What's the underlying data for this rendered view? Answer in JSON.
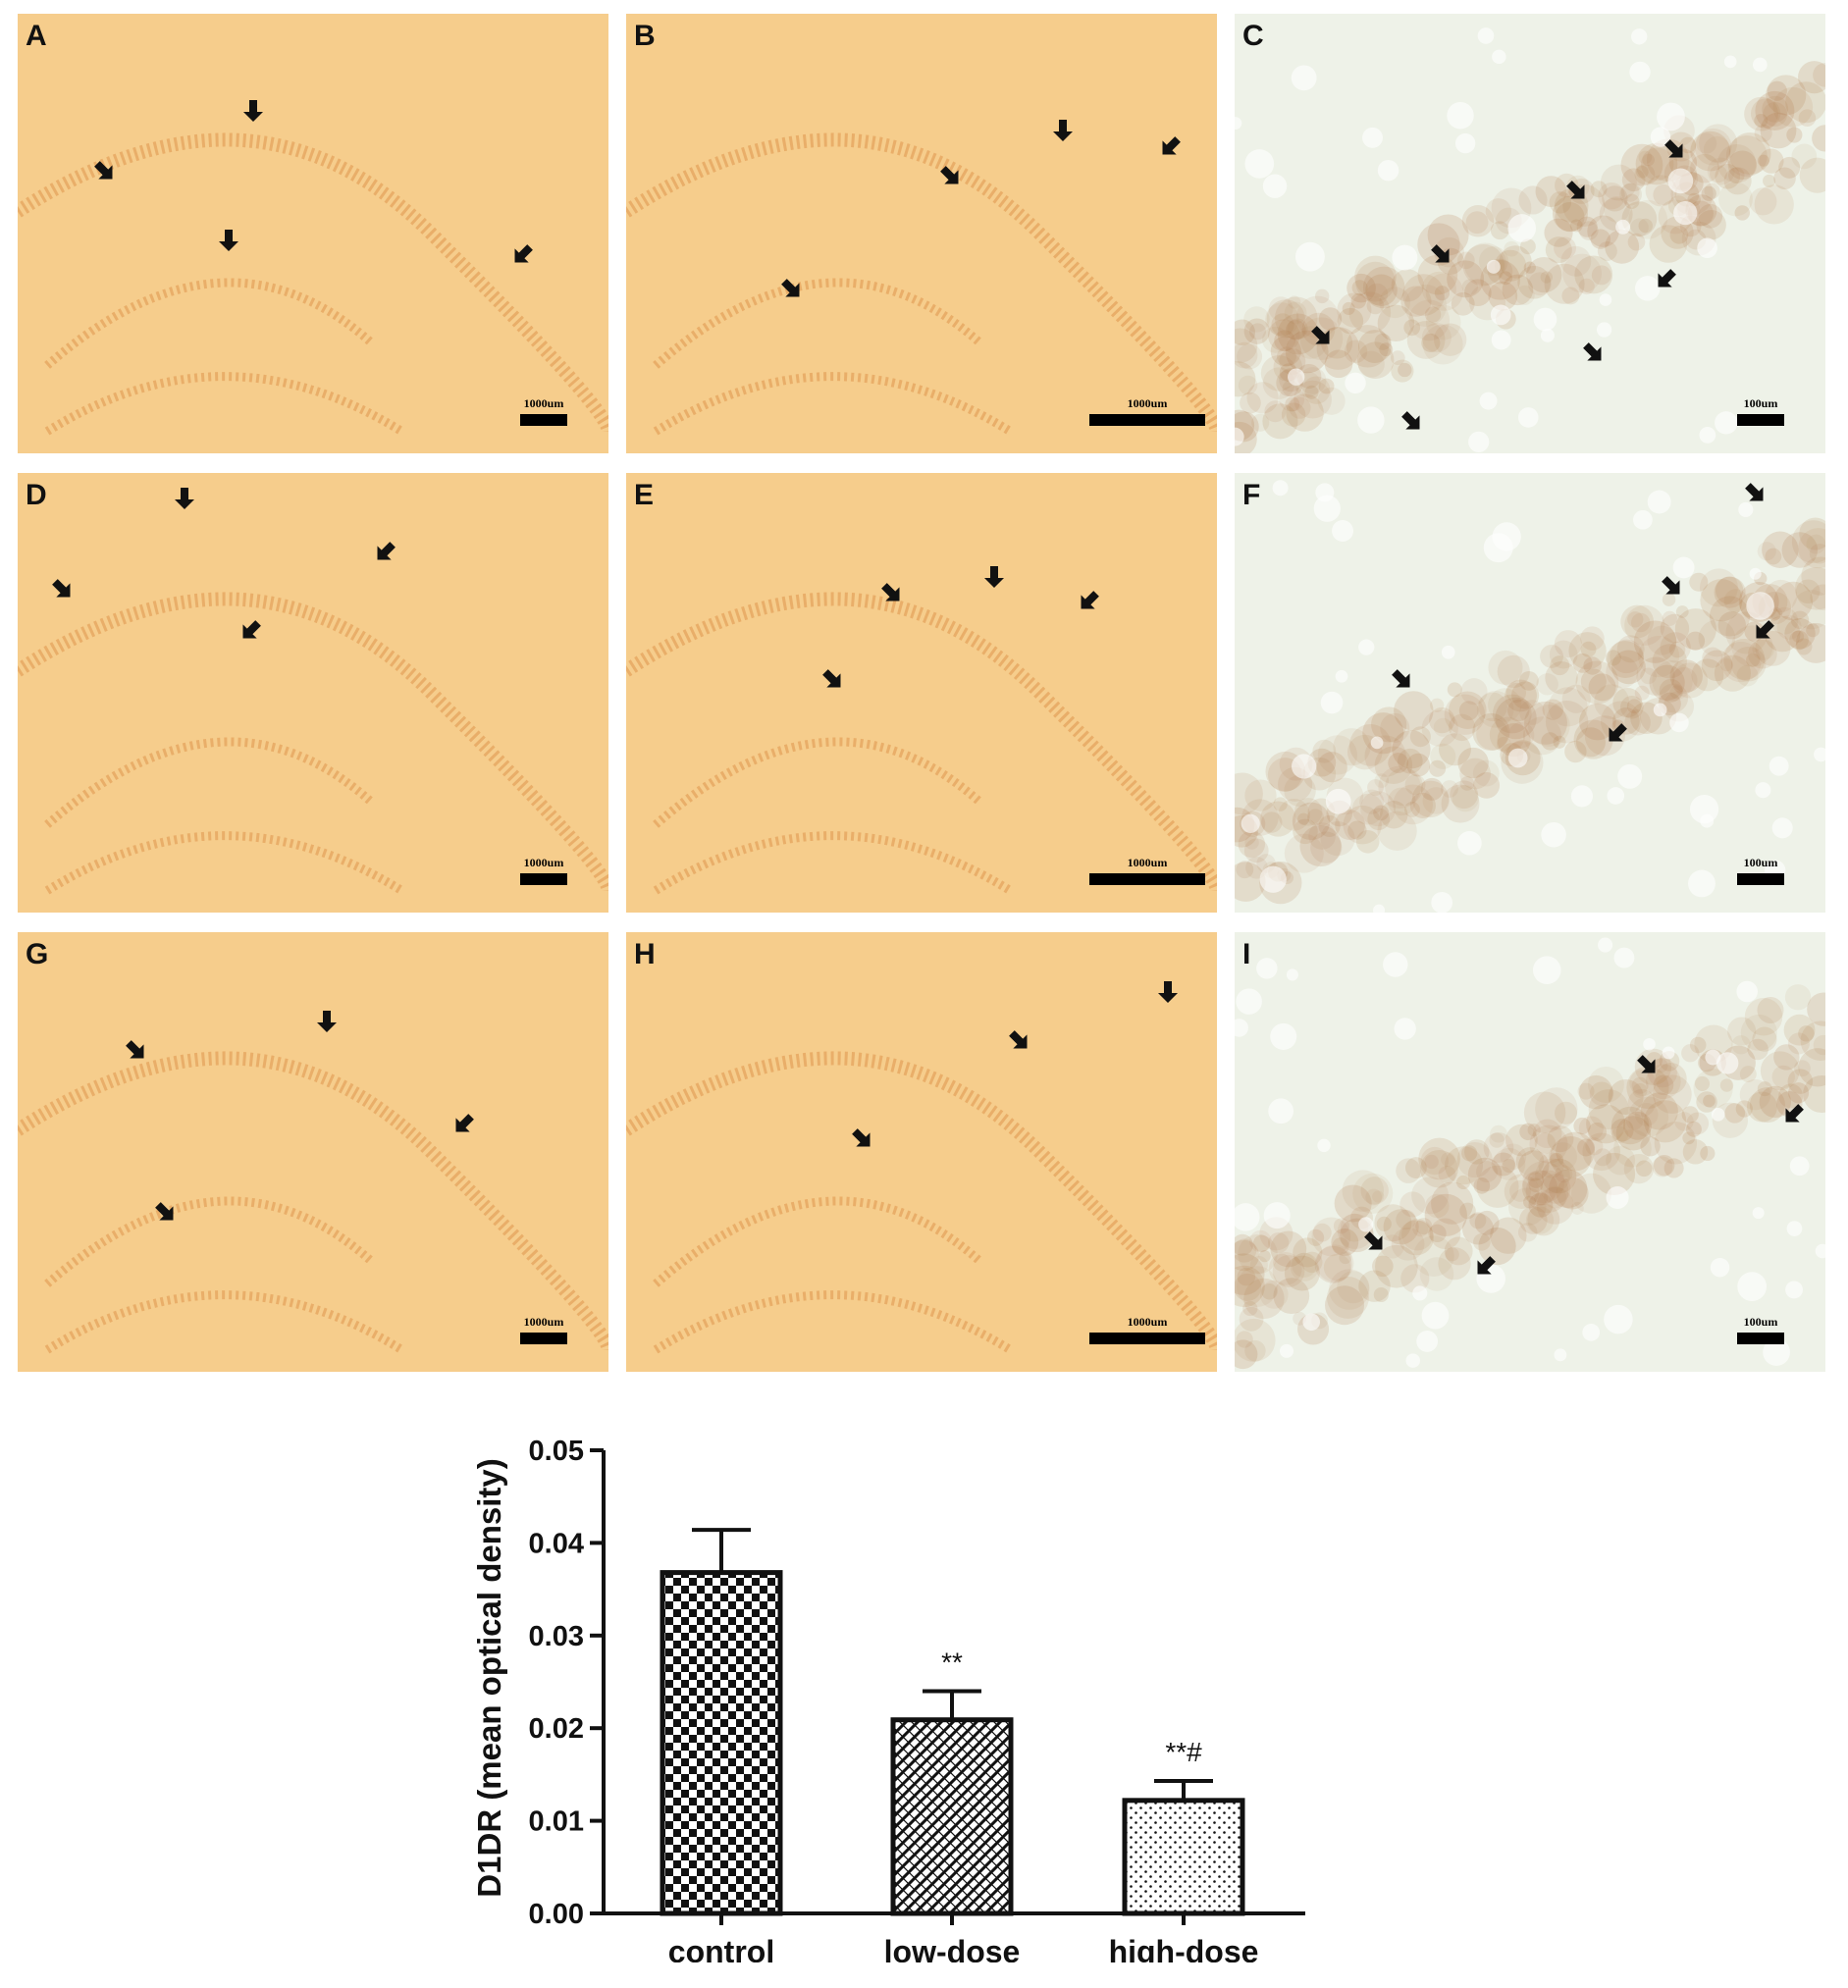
{
  "figure": {
    "panels": [
      {
        "letter": "A",
        "scale": "1000um",
        "theme": "orange",
        "bar": "short"
      },
      {
        "letter": "B",
        "scale": "1000um",
        "theme": "orange",
        "bar": "long"
      },
      {
        "letter": "C",
        "scale": "100um",
        "theme": "pale",
        "bar": "short"
      },
      {
        "letter": "D",
        "scale": "1000um",
        "theme": "orange",
        "bar": "short"
      },
      {
        "letter": "E",
        "scale": "1000um",
        "theme": "orange",
        "bar": "long"
      },
      {
        "letter": "F",
        "scale": "100um",
        "theme": "pale",
        "bar": "short"
      },
      {
        "letter": "G",
        "scale": "1000um",
        "theme": "orange",
        "bar": "short"
      },
      {
        "letter": "H",
        "scale": "1000um",
        "theme": "orange",
        "bar": "long"
      },
      {
        "letter": "I",
        "scale": "100um",
        "theme": "pale",
        "bar": "short"
      }
    ],
    "colors": {
      "orange_bg": "#f6cd8c",
      "orange_stain": "#d98a3e",
      "pale_bg": "#eef2e8",
      "pale_stain": "#b07a4a",
      "arrow": "#111111"
    }
  },
  "chart_data": {
    "type": "bar",
    "categories": [
      "control",
      "low-dose",
      "high-dose"
    ],
    "values": [
      0.0368,
      0.0209,
      0.0122
    ],
    "errors": [
      0.0046,
      0.0031,
      0.0021
    ],
    "significance": [
      "",
      "**",
      "**#"
    ],
    "patterns": [
      "checker",
      "diagonal-hatch",
      "dots"
    ],
    "ylabel": "D1DR (mean optical density)",
    "ylim": [
      0,
      0.05
    ],
    "yticks": [
      "0.00",
      "0.01",
      "0.02",
      "0.03",
      "0.04",
      "0.05"
    ],
    "grid": false
  }
}
